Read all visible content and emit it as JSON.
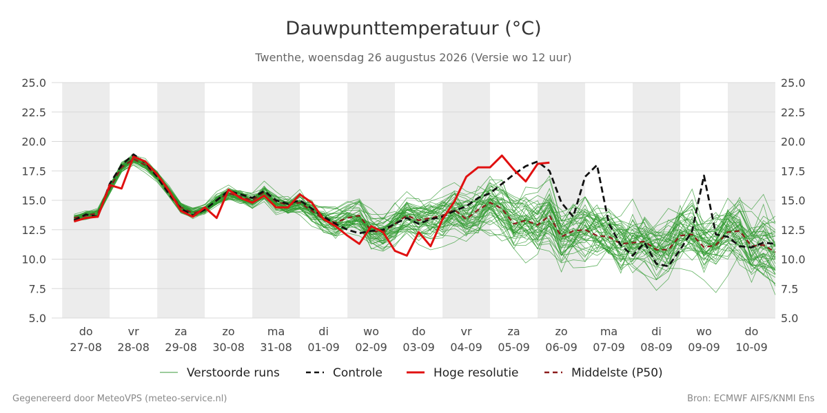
{
  "chart_data": {
    "type": "line",
    "title": "Dauwpunttemperatuur (°C)",
    "subtitle": "Twenthe, woensdag 26 augustus 2026 (Versie wo 12 uur)",
    "ylim": [
      5.0,
      25.0
    ],
    "yticks": [
      "5.0",
      "7.5",
      "10.0",
      "12.5",
      "15.0",
      "17.5",
      "20.0",
      "22.5",
      "25.0"
    ],
    "x_range_days": [
      -0.72,
      14.5
    ],
    "days": [
      {
        "dow": "do",
        "date": "27-08"
      },
      {
        "dow": "vr",
        "date": "28-08"
      },
      {
        "dow": "za",
        "date": "29-08"
      },
      {
        "dow": "zo",
        "date": "30-08"
      },
      {
        "dow": "ma",
        "date": "31-08"
      },
      {
        "dow": "di",
        "date": "01-09"
      },
      {
        "dow": "wo",
        "date": "02-09"
      },
      {
        "dow": "do",
        "date": "03-09"
      },
      {
        "dow": "vr",
        "date": "04-09"
      },
      {
        "dow": "za",
        "date": "05-09"
      },
      {
        "dow": "zo",
        "date": "06-09"
      },
      {
        "dow": "ma",
        "date": "07-09"
      },
      {
        "dow": "di",
        "date": "08-09"
      },
      {
        "dow": "wo",
        "date": "09-09"
      },
      {
        "dow": "do",
        "date": "10-09"
      }
    ],
    "grid": true,
    "legend_position": "bottom",
    "legend": [
      {
        "label": "Verstoorde runs",
        "color": "#3a9a3a",
        "style": "thin"
      },
      {
        "label": "Controle",
        "color": "#111111",
        "style": "dashed"
      },
      {
        "label": "Hoge resolutie",
        "color": "#e01010",
        "style": "solid"
      },
      {
        "label": "Middelste (P50)",
        "color": "#8b1a1a",
        "style": "dashed"
      }
    ],
    "series": [
      {
        "name": "Hoge resolutie",
        "color": "#e01010",
        "x": [
          -0.25,
          0,
          0.25,
          0.5,
          0.75,
          1,
          1.25,
          1.5,
          1.75,
          2,
          2.25,
          2.5,
          2.75,
          3,
          3.25,
          3.5,
          3.75,
          4,
          4.25,
          4.5,
          4.75,
          5,
          5.25,
          5.5,
          5.75,
          6,
          6.25,
          6.5,
          6.75,
          7,
          7.25,
          7.5,
          7.75,
          8,
          8.25,
          8.5,
          8.75,
          9,
          9.25,
          9.5,
          9.75
        ],
        "y": [
          13.2,
          13.5,
          13.6,
          16.3,
          16.0,
          18.7,
          18.3,
          17.2,
          15.8,
          14.1,
          13.6,
          14.4,
          13.5,
          15.9,
          15.2,
          14.8,
          15.4,
          14.4,
          14.4,
          15.5,
          14.8,
          13.4,
          12.8,
          12.0,
          11.3,
          12.8,
          12.3,
          10.7,
          10.3,
          12.3,
          11.1,
          13.4,
          14.9,
          17.0,
          17.8,
          17.8,
          18.8,
          17.6,
          16.6,
          18.1,
          18.2
        ]
      },
      {
        "name": "Controle",
        "color": "#111111",
        "x": [
          -0.25,
          0,
          0.25,
          0.5,
          0.75,
          1,
          1.25,
          1.5,
          1.75,
          2,
          2.25,
          2.5,
          2.75,
          3,
          3.25,
          3.5,
          3.75,
          4,
          4.25,
          4.5,
          4.75,
          5,
          5.25,
          5.5,
          5.75,
          6,
          6.25,
          6.5,
          6.75,
          7,
          7.25,
          7.5,
          7.75,
          8,
          8.25,
          8.5,
          8.75,
          9,
          9.25,
          9.5,
          9.75,
          10,
          10.25,
          10.5,
          10.75,
          11,
          11.25,
          11.5,
          11.75,
          12,
          12.25,
          12.5,
          12.75,
          13,
          13.25,
          13.5,
          13.75,
          14,
          14.25,
          14.5
        ],
        "y": [
          13.3,
          13.8,
          13.6,
          16.4,
          18.0,
          18.9,
          18.2,
          17.0,
          15.5,
          14.3,
          13.7,
          14.2,
          15.0,
          15.8,
          15.5,
          15.2,
          15.8,
          15.0,
          14.7,
          15.0,
          14.3,
          13.6,
          13.0,
          12.5,
          12.2,
          12.4,
          12.5,
          13.0,
          13.5,
          13.0,
          13.4,
          13.6,
          14.1,
          14.5,
          15.2,
          15.6,
          16.4,
          17.2,
          17.9,
          18.3,
          17.5,
          14.8,
          13.6,
          17.0,
          18.0,
          13.0,
          11.2,
          10.3,
          11.4,
          9.6,
          9.4,
          10.8,
          12.4,
          17.1,
          12.1,
          11.9,
          11.1,
          11.0,
          11.4,
          11.3
        ]
      },
      {
        "name": "Middelste (P50)",
        "color": "#8b1a1a",
        "x": [
          -0.25,
          0,
          0.25,
          0.5,
          0.75,
          1,
          1.25,
          1.5,
          1.75,
          2,
          2.25,
          2.5,
          2.75,
          3,
          3.25,
          3.5,
          3.75,
          4,
          4.25,
          4.5,
          4.75,
          5,
          5.25,
          5.5,
          5.75,
          6,
          6.25,
          6.5,
          6.75,
          7,
          7.25,
          7.5,
          7.75,
          8,
          8.25,
          8.5,
          8.75,
          9,
          9.25,
          9.5,
          9.75,
          10,
          10.25,
          10.5,
          10.75,
          11,
          11.25,
          11.5,
          11.75,
          12,
          12.25,
          12.5,
          12.75,
          13,
          13.25,
          13.5,
          13.75,
          14,
          14.25,
          14.5
        ],
        "y": [
          13.5,
          13.7,
          13.9,
          16.0,
          17.8,
          18.5,
          18.0,
          17.0,
          15.7,
          14.4,
          13.9,
          14.2,
          15.0,
          15.6,
          15.3,
          15.0,
          15.7,
          14.9,
          14.6,
          14.8,
          14.1,
          13.4,
          13.1,
          13.5,
          13.7,
          12.4,
          12.3,
          13.0,
          13.7,
          13.3,
          13.5,
          13.7,
          14.2,
          13.4,
          14.2,
          14.8,
          14.3,
          13.0,
          13.3,
          12.9,
          13.7,
          11.9,
          12.4,
          12.5,
          12.0,
          11.9,
          11.3,
          11.4,
          11.5,
          10.8,
          10.8,
          12.0,
          12.1,
          11.0,
          11.2,
          12.3,
          12.4,
          11.1,
          11.2,
          10.6
        ]
      }
    ]
  },
  "footer": {
    "left": "Gegenereerd door MeteoVPS (meteo-service.nl)",
    "right": "Bron: ECMWF AIFS/KNMI Ens"
  }
}
